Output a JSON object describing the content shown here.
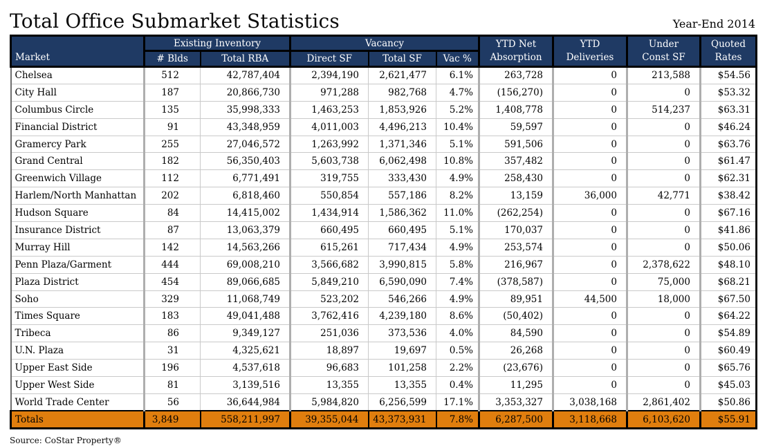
{
  "page": {
    "title": "Total Office Submarket Statistics",
    "period": "Year-End 2014",
    "source": "Source: CoStar Property®"
  },
  "colors": {
    "header_bg": "#1f3a64",
    "totals_bg": "#e07e0e",
    "grid": "#c9c9c9",
    "grid_strong": "#aeaeae"
  },
  "table": {
    "market_header": "Market",
    "grouped_headers": [
      {
        "label": "Existing Inventory",
        "subs": [
          "# Blds",
          "Total RBA"
        ]
      },
      {
        "label": "Vacancy",
        "subs": [
          "Direct SF",
          "Total SF",
          "Vac %"
        ]
      }
    ],
    "merged_headers": [
      {
        "line1": "YTD Net",
        "line2": "Absorption"
      },
      {
        "line1": "YTD",
        "line2": "Deliveries"
      },
      {
        "line1": "Under",
        "line2": "Const SF"
      },
      {
        "line1": "Quoted",
        "line2": "Rates"
      }
    ],
    "rows": [
      [
        "Chelsea",
        "512",
        "42,787,404",
        "2,394,190",
        "2,621,477",
        "6.1%",
        "263,728",
        "0",
        "213,588",
        "$54.56"
      ],
      [
        "City Hall",
        "187",
        "20,866,730",
        "971,288",
        "982,768",
        "4.7%",
        "(156,270)",
        "0",
        "0",
        "$53.32"
      ],
      [
        "Columbus Circle",
        "135",
        "35,998,333",
        "1,463,253",
        "1,853,926",
        "5.2%",
        "1,408,778",
        "0",
        "514,237",
        "$63.31"
      ],
      [
        "Financial District",
        "91",
        "43,348,959",
        "4,011,003",
        "4,496,213",
        "10.4%",
        "59,597",
        "0",
        "0",
        "$46.24"
      ],
      [
        "Gramercy Park",
        "255",
        "27,046,572",
        "1,263,992",
        "1,371,346",
        "5.1%",
        "591,506",
        "0",
        "0",
        "$63.76"
      ],
      [
        "Grand Central",
        "182",
        "56,350,403",
        "5,603,738",
        "6,062,498",
        "10.8%",
        "357,482",
        "0",
        "0",
        "$61.47"
      ],
      [
        "Greenwich Village",
        "112",
        "6,771,491",
        "319,755",
        "333,430",
        "4.9%",
        "258,430",
        "0",
        "0",
        "$62.31"
      ],
      [
        "Harlem/North Manhattan",
        "202",
        "6,818,460",
        "550,854",
        "557,186",
        "8.2%",
        "13,159",
        "36,000",
        "42,771",
        "$38.42"
      ],
      [
        "Hudson Square",
        "84",
        "14,415,002",
        "1,434,914",
        "1,586,362",
        "11.0%",
        "(262,254)",
        "0",
        "0",
        "$67.16"
      ],
      [
        "Insurance District",
        "87",
        "13,063,379",
        "660,495",
        "660,495",
        "5.1%",
        "170,037",
        "0",
        "0",
        "$41.86"
      ],
      [
        "Murray Hill",
        "142",
        "14,563,266",
        "615,261",
        "717,434",
        "4.9%",
        "253,574",
        "0",
        "0",
        "$50.06"
      ],
      [
        "Penn Plaza/Garment",
        "444",
        "69,008,210",
        "3,566,682",
        "3,990,815",
        "5.8%",
        "216,967",
        "0",
        "2,378,622",
        "$48.10"
      ],
      [
        "Plaza District",
        "454",
        "89,066,685",
        "5,849,210",
        "6,590,090",
        "7.4%",
        "(378,587)",
        "0",
        "75,000",
        "$68.21"
      ],
      [
        "Soho",
        "329",
        "11,068,749",
        "523,202",
        "546,266",
        "4.9%",
        "89,951",
        "44,500",
        "18,000",
        "$67.50"
      ],
      [
        "Times Square",
        "183",
        "49,041,488",
        "3,762,416",
        "4,239,180",
        "8.6%",
        "(50,402)",
        "0",
        "0",
        "$64.22"
      ],
      [
        "Tribeca",
        "86",
        "9,349,127",
        "251,036",
        "373,536",
        "4.0%",
        "84,590",
        "0",
        "0",
        "$54.89"
      ],
      [
        "U.N. Plaza",
        "31",
        "4,325,621",
        "18,897",
        "19,697",
        "0.5%",
        "26,268",
        "0",
        "0",
        "$60.49"
      ],
      [
        "Upper East Side",
        "196",
        "4,537,618",
        "96,683",
        "101,258",
        "2.2%",
        "(23,676)",
        "0",
        "0",
        "$65.76"
      ],
      [
        "Upper West Side",
        "81",
        "3,139,516",
        "13,355",
        "13,355",
        "0.4%",
        "11,295",
        "0",
        "0",
        "$45.03"
      ],
      [
        "World Trade Center",
        "56",
        "36,644,984",
        "5,984,820",
        "6,256,599",
        "17.1%",
        "3,353,327",
        "3,038,168",
        "2,861,402",
        "$50.86"
      ]
    ],
    "totals": [
      "Totals",
      "3,849",
      "558,211,997",
      "39,355,044",
      "43,373,931",
      "7.8%",
      "6,287,500",
      "3,118,668",
      "6,103,620",
      "$55.91"
    ]
  }
}
